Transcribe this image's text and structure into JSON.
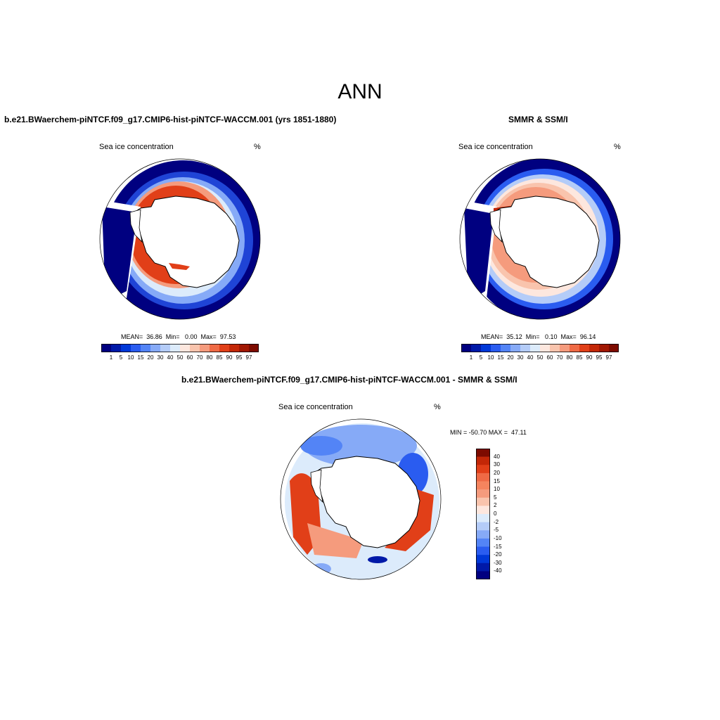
{
  "page_title": "ANN",
  "panels": [
    {
      "title": "b.e21.BWaerchem-piNTCF.f09_g17.CMIP6-hist-piNTCF-WACCM.001 (yrs 1851-1880)",
      "left_label": "Sea ice concentration",
      "units": "%",
      "stats": "MEAN=  36.86  Min=   0.00  Max=  97.53"
    },
    {
      "title": "SMMR & SSM/I",
      "left_label": "Sea ice concentration",
      "units": "%",
      "stats": "MEAN=  35.12  Min=   0.10  Max=  96.14"
    },
    {
      "title": "b.e21.BWaerchem-piNTCF.f09_g17.CMIP6-hist-piNTCF-WACCM.001 - SMMR & SSM/I",
      "left_label": "Sea ice concentration",
      "units": "%",
      "stats": "MIN = -50.70 MAX =  47.11"
    }
  ],
  "abs_colorbar": {
    "labels": [
      "1",
      "5",
      "10",
      "15",
      "20",
      "30",
      "40",
      "50",
      "60",
      "70",
      "80",
      "85",
      "90",
      "95",
      "97"
    ],
    "colors": [
      "#000080",
      "#0019a8",
      "#0038d8",
      "#2a5cf0",
      "#5384f6",
      "#86aaf7",
      "#b4ccf8",
      "#dcebfb",
      "#fde7de",
      "#f9c4ad",
      "#f59b7d",
      "#ef6a45",
      "#e13f18",
      "#c32707",
      "#a11703",
      "#7d0b00"
    ]
  },
  "diff_colorbar": {
    "labels": [
      "40",
      "30",
      "20",
      "15",
      "10",
      "5",
      "2",
      "0",
      "-2",
      "-5",
      "-10",
      "-15",
      "-20",
      "-30",
      "-40"
    ],
    "colors": [
      "#7d0b00",
      "#c32707",
      "#e13f18",
      "#ef6a45",
      "#f5845e",
      "#f59b7d",
      "#f9c4ad",
      "#fde7de",
      "#dcebfb",
      "#b4ccf8",
      "#86aaf7",
      "#5384f6",
      "#2a5cf0",
      "#0038d8",
      "#0019a8",
      "#000080"
    ]
  },
  "map_colors": {
    "ocean": "#ffffff",
    "land": "#ffffff",
    "deep_blue": "#000080",
    "mid_blue": "#2a5cf0",
    "light_blue": "#b4ccf8",
    "pale": "#fde7de",
    "orange": "#f59b7d",
    "red": "#e13f18",
    "dark_red": "#c32707"
  }
}
